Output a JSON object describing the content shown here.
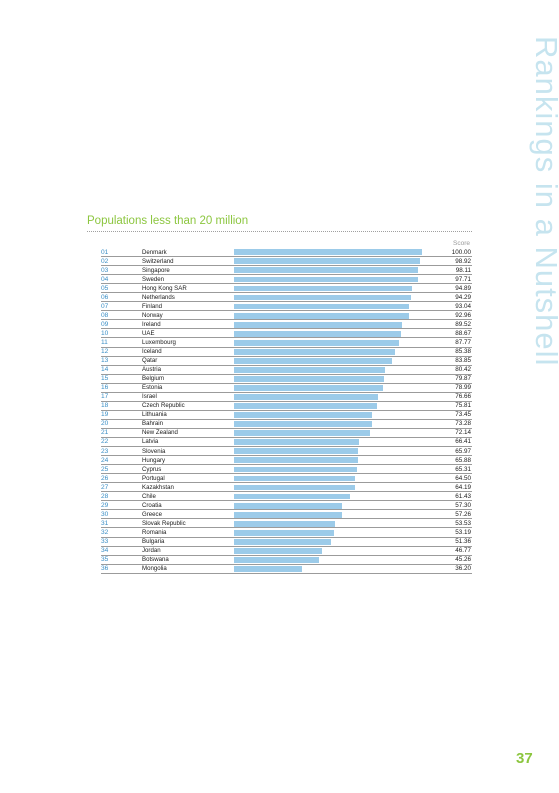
{
  "side_title": "Rankings in a Nutshell",
  "page_number": "37",
  "colors": {
    "accent_green": "#8cc63f",
    "rank_blue": "#3b8fc6",
    "bar_blue": "#9ccbe9",
    "side_title_blue": "#c6e4ef"
  },
  "chart_data": {
    "type": "bar",
    "orientation": "horizontal",
    "title": "Populations less than 20 million",
    "value_header": "Score",
    "xlim": [
      0,
      100
    ],
    "grid": false,
    "legend": "none",
    "ranks": [
      "01",
      "02",
      "03",
      "04",
      "05",
      "06",
      "07",
      "08",
      "09",
      "10",
      "11",
      "12",
      "13",
      "14",
      "15",
      "16",
      "17",
      "18",
      "19",
      "20",
      "21",
      "22",
      "23",
      "24",
      "25",
      "26",
      "27",
      "28",
      "29",
      "30",
      "31",
      "32",
      "33",
      "34",
      "35",
      "36"
    ],
    "categories": [
      "Denmark",
      "Switzerland",
      "Singapore",
      "Sweden",
      "Hong Kong SAR",
      "Netherlands",
      "Finland",
      "Norway",
      "Ireland",
      "UAE",
      "Luxembourg",
      "Iceland",
      "Qatar",
      "Austria",
      "Belgium",
      "Estonia",
      "Israel",
      "Czech Republic",
      "Lithuania",
      "Bahrain",
      "New Zealand",
      "Latvia",
      "Slovenia",
      "Hungary",
      "Cyprus",
      "Portugal",
      "Kazakhstan",
      "Chile",
      "Croatia",
      "Greece",
      "Slovak Republic",
      "Romania",
      "Bulgaria",
      "Jordan",
      "Botswana",
      "Mongolia"
    ],
    "values": [
      100.0,
      98.92,
      98.11,
      97.71,
      94.89,
      94.29,
      93.04,
      92.96,
      89.52,
      88.67,
      87.77,
      85.38,
      83.85,
      80.42,
      79.87,
      78.99,
      76.66,
      75.81,
      73.45,
      73.28,
      72.14,
      66.41,
      65.97,
      65.88,
      65.31,
      64.5,
      64.19,
      61.43,
      57.3,
      57.26,
      53.53,
      53.19,
      51.36,
      46.77,
      45.26,
      36.2
    ],
    "value_labels": [
      "100.00",
      "98.92",
      "98.11",
      "97.71",
      "94.89",
      "94.29",
      "93.04",
      "92.96",
      "89.52",
      "88.67",
      "87.77",
      "85.38",
      "83.85",
      "80.42",
      "79.87",
      "78.99",
      "76.66",
      "75.81",
      "73.45",
      "73.28",
      "72.14",
      "66.41",
      "65.97",
      "65.88",
      "65.31",
      "64.50",
      "64.19",
      "61.43",
      "57.30",
      "57.26",
      "53.53",
      "53.19",
      "51.36",
      "46.77",
      "45.26",
      "36.20"
    ]
  }
}
